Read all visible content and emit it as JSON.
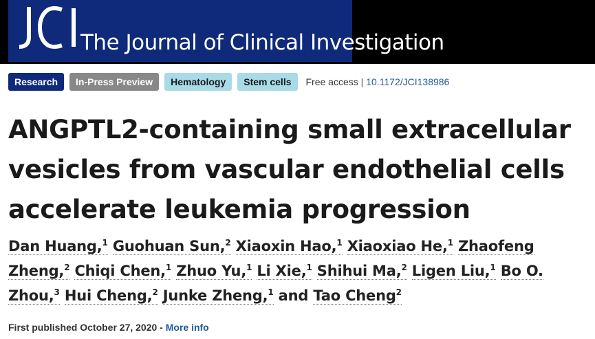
{
  "header": {
    "logo_text": "JCI",
    "journal_name": "The Journal of Clinical Investigation"
  },
  "tags": {
    "research": "Research",
    "in_press": "In-Press Preview",
    "hematology": "Hematology",
    "stem_cells": "Stem cells"
  },
  "access": {
    "label": "Free access",
    "separator": "|",
    "doi": "10.1172/JCI138986"
  },
  "article": {
    "title": "ANGPTL2-containing small extracellular vesicles from vascular endothelial cells accelerate leukemia progression"
  },
  "authors": [
    {
      "name": "Dan Huang",
      "aff": "1"
    },
    {
      "name": "Guohuan Sun",
      "aff": "2"
    },
    {
      "name": "Xiaoxin Hao",
      "aff": "1"
    },
    {
      "name": "Xiaoxiao He",
      "aff": "1"
    },
    {
      "name": "Zhaofeng Zheng",
      "aff": "2"
    },
    {
      "name": "Chiqi Chen",
      "aff": "1"
    },
    {
      "name": "Zhuo Yu",
      "aff": "1"
    },
    {
      "name": "Li Xie",
      "aff": "1"
    },
    {
      "name": "Shihui Ma",
      "aff": "2"
    },
    {
      "name": "Ligen Liu",
      "aff": "1"
    },
    {
      "name": "Bo O. Zhou",
      "aff": "3"
    },
    {
      "name": "Hui Cheng",
      "aff": "2"
    },
    {
      "name": "Junke Zheng",
      "aff": "1"
    },
    {
      "name": "Tao Cheng",
      "aff": "2"
    }
  ],
  "authors_conjunction": "and",
  "published": {
    "text": "First published October 27, 2020 -",
    "more_info": "More info"
  }
}
